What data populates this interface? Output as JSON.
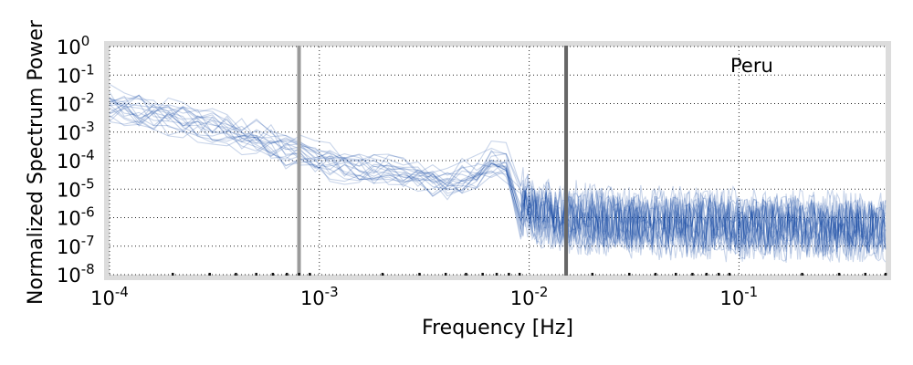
{
  "chart_data": {
    "type": "line",
    "title": "",
    "annotation": "Peru",
    "xlabel": "Frequency [Hz]",
    "ylabel": "Normalized Spectrum Power",
    "xscale": "log",
    "yscale": "log",
    "xlim": [
      0.0001,
      0.5
    ],
    "ylim": [
      1e-08,
      1
    ],
    "grid": true,
    "x_ticks": [
      {
        "value": 0.0001,
        "base": "10",
        "exp": "-4"
      },
      {
        "value": 0.001,
        "base": "10",
        "exp": "-3"
      },
      {
        "value": 0.01,
        "base": "10",
        "exp": "-2"
      },
      {
        "value": 0.1,
        "base": "10",
        "exp": "-1"
      }
    ],
    "y_ticks": [
      {
        "value": 1,
        "base": "10",
        "exp": "0"
      },
      {
        "value": 0.1,
        "base": "10",
        "exp": "-1"
      },
      {
        "value": 0.01,
        "base": "10",
        "exp": "-2"
      },
      {
        "value": 0.001,
        "base": "10",
        "exp": "-3"
      },
      {
        "value": 0.0001,
        "base": "10",
        "exp": "-4"
      },
      {
        "value": 1e-05,
        "base": "10",
        "exp": "-5"
      },
      {
        "value": 1e-06,
        "base": "10",
        "exp": "-6"
      },
      {
        "value": 1e-07,
        "base": "10",
        "exp": "-7"
      },
      {
        "value": 1e-08,
        "base": "10",
        "exp": "-8"
      }
    ],
    "vertical_lines": [
      {
        "x": 0.0008,
        "color": "#9a9a9a"
      },
      {
        "x": 0.015,
        "color": "#666666"
      }
    ],
    "series_color": "#0a3fa0",
    "series_count": 20,
    "envelope": {
      "x": [
        0.0001,
        0.0002,
        0.0004,
        0.0008,
        0.001,
        0.002,
        0.004,
        0.006,
        0.007,
        0.008,
        0.009,
        0.01,
        0.015,
        0.03,
        0.1,
        0.5
      ],
      "median": [
        0.01,
        0.004,
        0.001,
        0.0002,
        0.0001,
        5e-05,
        2e-05,
        4e-05,
        0.0002,
        6e-05,
        3e-06,
        2e-06,
        1e-06,
        8e-07,
        6e-07,
        5e-07
      ]
    }
  }
}
